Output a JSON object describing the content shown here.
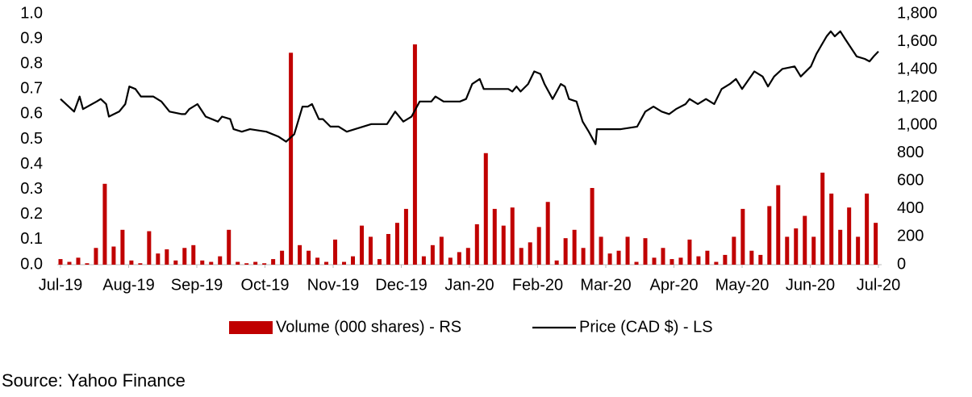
{
  "chart_data": {
    "type": "combo",
    "source": "Source: Yahoo Finance",
    "legend": "bottom",
    "grid": false,
    "xlim": [
      0,
      12
    ],
    "xticks": [
      {
        "value": 0,
        "label": "Jul-19"
      },
      {
        "value": 1,
        "label": "Aug-19"
      },
      {
        "value": 2,
        "label": "Sep-19"
      },
      {
        "value": 3,
        "label": "Oct-19"
      },
      {
        "value": 4,
        "label": "Nov-19"
      },
      {
        "value": 5,
        "label": "Dec-19"
      },
      {
        "value": 6,
        "label": "Jan-20"
      },
      {
        "value": 7,
        "label": "Feb-20"
      },
      {
        "value": 8,
        "label": "Mar-20"
      },
      {
        "value": 9,
        "label": "Apr-20"
      },
      {
        "value": 10,
        "label": "May-20"
      },
      {
        "value": 11,
        "label": "Jun-20"
      },
      {
        "value": 12,
        "label": "Jul-20"
      }
    ],
    "ylim": [
      0,
      1
    ],
    "yticks": [
      {
        "value": 0,
        "label": "0.0"
      },
      0.1,
      0.2,
      0.3,
      0.4,
      0.5,
      0.6,
      0.7,
      0.8,
      0.9,
      {
        "value": 1,
        "label": "1.0"
      }
    ],
    "y2lim": [
      0,
      1800
    ],
    "y2ticks": [
      0,
      200,
      400,
      600,
      800,
      {
        "value": 1000,
        "label": "1,000"
      },
      {
        "value": 1200,
        "label": "1,200"
      },
      {
        "value": 1400,
        "label": "1,400"
      },
      {
        "value": 1600,
        "label": "1,600"
      },
      {
        "value": 1800,
        "label": "1,800"
      }
    ],
    "series": [
      {
        "name": "Volume (000 shares) - RS",
        "type": "bar",
        "axis": "y2",
        "color": "#c00000",
        "x": [
          0,
          0.13,
          0.26,
          0.39,
          0.52,
          0.65,
          0.78,
          0.91,
          1.04,
          1.17,
          1.3,
          1.43,
          1.56,
          1.69,
          1.82,
          1.95,
          2.08,
          2.21,
          2.34,
          2.47,
          2.6,
          2.73,
          2.86,
          2.99,
          3.12,
          3.25,
          3.38,
          3.51,
          3.64,
          3.77,
          3.9,
          4.03,
          4.16,
          4.29,
          4.42,
          4.55,
          4.68,
          4.81,
          4.94,
          5.07,
          5.2,
          5.33,
          5.46,
          5.59,
          5.72,
          5.85,
          5.98,
          6.11,
          6.24,
          6.37,
          6.5,
          6.63,
          6.76,
          6.89,
          7.02,
          7.15,
          7.28,
          7.41,
          7.54,
          7.67,
          7.8,
          7.93,
          8.06,
          8.19,
          8.32,
          8.45,
          8.58,
          8.71,
          8.84,
          8.97,
          9.1,
          9.23,
          9.36,
          9.49,
          9.62,
          9.75,
          9.88,
          10.01,
          10.14,
          10.27,
          10.4,
          10.53,
          10.66,
          10.79,
          10.92,
          11.05,
          11.18,
          11.31,
          11.44,
          11.57,
          11.7,
          11.83,
          11.96
        ],
        "values": [
          40,
          20,
          50,
          10,
          120,
          580,
          130,
          250,
          30,
          10,
          240,
          80,
          110,
          30,
          120,
          140,
          30,
          20,
          60,
          250,
          20,
          10,
          20,
          10,
          40,
          100,
          1520,
          140,
          100,
          50,
          20,
          180,
          20,
          60,
          280,
          200,
          40,
          220,
          300,
          400,
          1580,
          60,
          140,
          200,
          50,
          90,
          120,
          290,
          800,
          400,
          280,
          410,
          120,
          160,
          270,
          450,
          30,
          190,
          250,
          120,
          550,
          200,
          80,
          100,
          200,
          20,
          190,
          50,
          120,
          40,
          50,
          180,
          60,
          100,
          20,
          70,
          200,
          400,
          100,
          70,
          420,
          570,
          200,
          260,
          350,
          200,
          660,
          510,
          250,
          410,
          200,
          510,
          300
        ]
      },
      {
        "name": "Price (CAD $) - LS",
        "type": "line",
        "axis": "y",
        "color": "#000000",
        "x": [
          0,
          0.2,
          0.28,
          0.33,
          0.53,
          0.59,
          0.67,
          0.71,
          0.86,
          0.95,
          1.01,
          1.1,
          1.18,
          1.36,
          1.48,
          1.6,
          1.78,
          1.83,
          1.89,
          2.01,
          2.13,
          2.31,
          2.37,
          2.49,
          2.54,
          2.66,
          2.78,
          3.02,
          3.2,
          3.31,
          3.43,
          3.55,
          3.63,
          3.69,
          3.79,
          3.85,
          3.96,
          4.08,
          4.2,
          4.32,
          4.56,
          4.79,
          4.91,
          5.03,
          5.15,
          5.27,
          5.44,
          5.5,
          5.62,
          5.86,
          5.95,
          6.04,
          6.15,
          6.21,
          6.57,
          6.63,
          6.69,
          6.75,
          6.86,
          6.95,
          7.04,
          7.1,
          7.22,
          7.28,
          7.34,
          7.4,
          7.46,
          7.57,
          7.66,
          7.75,
          7.85,
          7.87,
          8.05,
          8.22,
          8.46,
          8.58,
          8.7,
          8.82,
          8.93,
          9.03,
          9.17,
          9.23,
          9.35,
          9.47,
          9.59,
          9.7,
          9.82,
          9.91,
          10.0,
          10.18,
          10.3,
          10.38,
          10.47,
          10.59,
          10.77,
          10.86,
          11.01,
          11.09,
          11.24,
          11.3,
          11.36,
          11.44,
          11.51,
          11.68,
          11.8,
          11.87,
          11.93,
          12.0
        ],
        "values": [
          0.66,
          0.61,
          0.67,
          0.62,
          0.65,
          0.66,
          0.64,
          0.59,
          0.61,
          0.64,
          0.71,
          0.7,
          0.67,
          0.67,
          0.65,
          0.61,
          0.6,
          0.6,
          0.62,
          0.64,
          0.59,
          0.57,
          0.59,
          0.58,
          0.54,
          0.53,
          0.54,
          0.53,
          0.51,
          0.49,
          0.52,
          0.63,
          0.63,
          0.64,
          0.58,
          0.58,
          0.55,
          0.55,
          0.53,
          0.54,
          0.56,
          0.56,
          0.61,
          0.57,
          0.59,
          0.65,
          0.65,
          0.67,
          0.65,
          0.65,
          0.66,
          0.72,
          0.74,
          0.7,
          0.7,
          0.69,
          0.71,
          0.69,
          0.72,
          0.77,
          0.76,
          0.72,
          0.66,
          0.69,
          0.72,
          0.71,
          0.66,
          0.65,
          0.57,
          0.53,
          0.48,
          0.54,
          0.54,
          0.54,
          0.55,
          0.61,
          0.63,
          0.61,
          0.6,
          0.62,
          0.64,
          0.66,
          0.64,
          0.66,
          0.64,
          0.7,
          0.72,
          0.74,
          0.7,
          0.77,
          0.75,
          0.71,
          0.75,
          0.78,
          0.79,
          0.75,
          0.79,
          0.84,
          0.91,
          0.93,
          0.91,
          0.93,
          0.9,
          0.83,
          0.82,
          0.81,
          0.83,
          0.85
        ]
      }
    ]
  }
}
